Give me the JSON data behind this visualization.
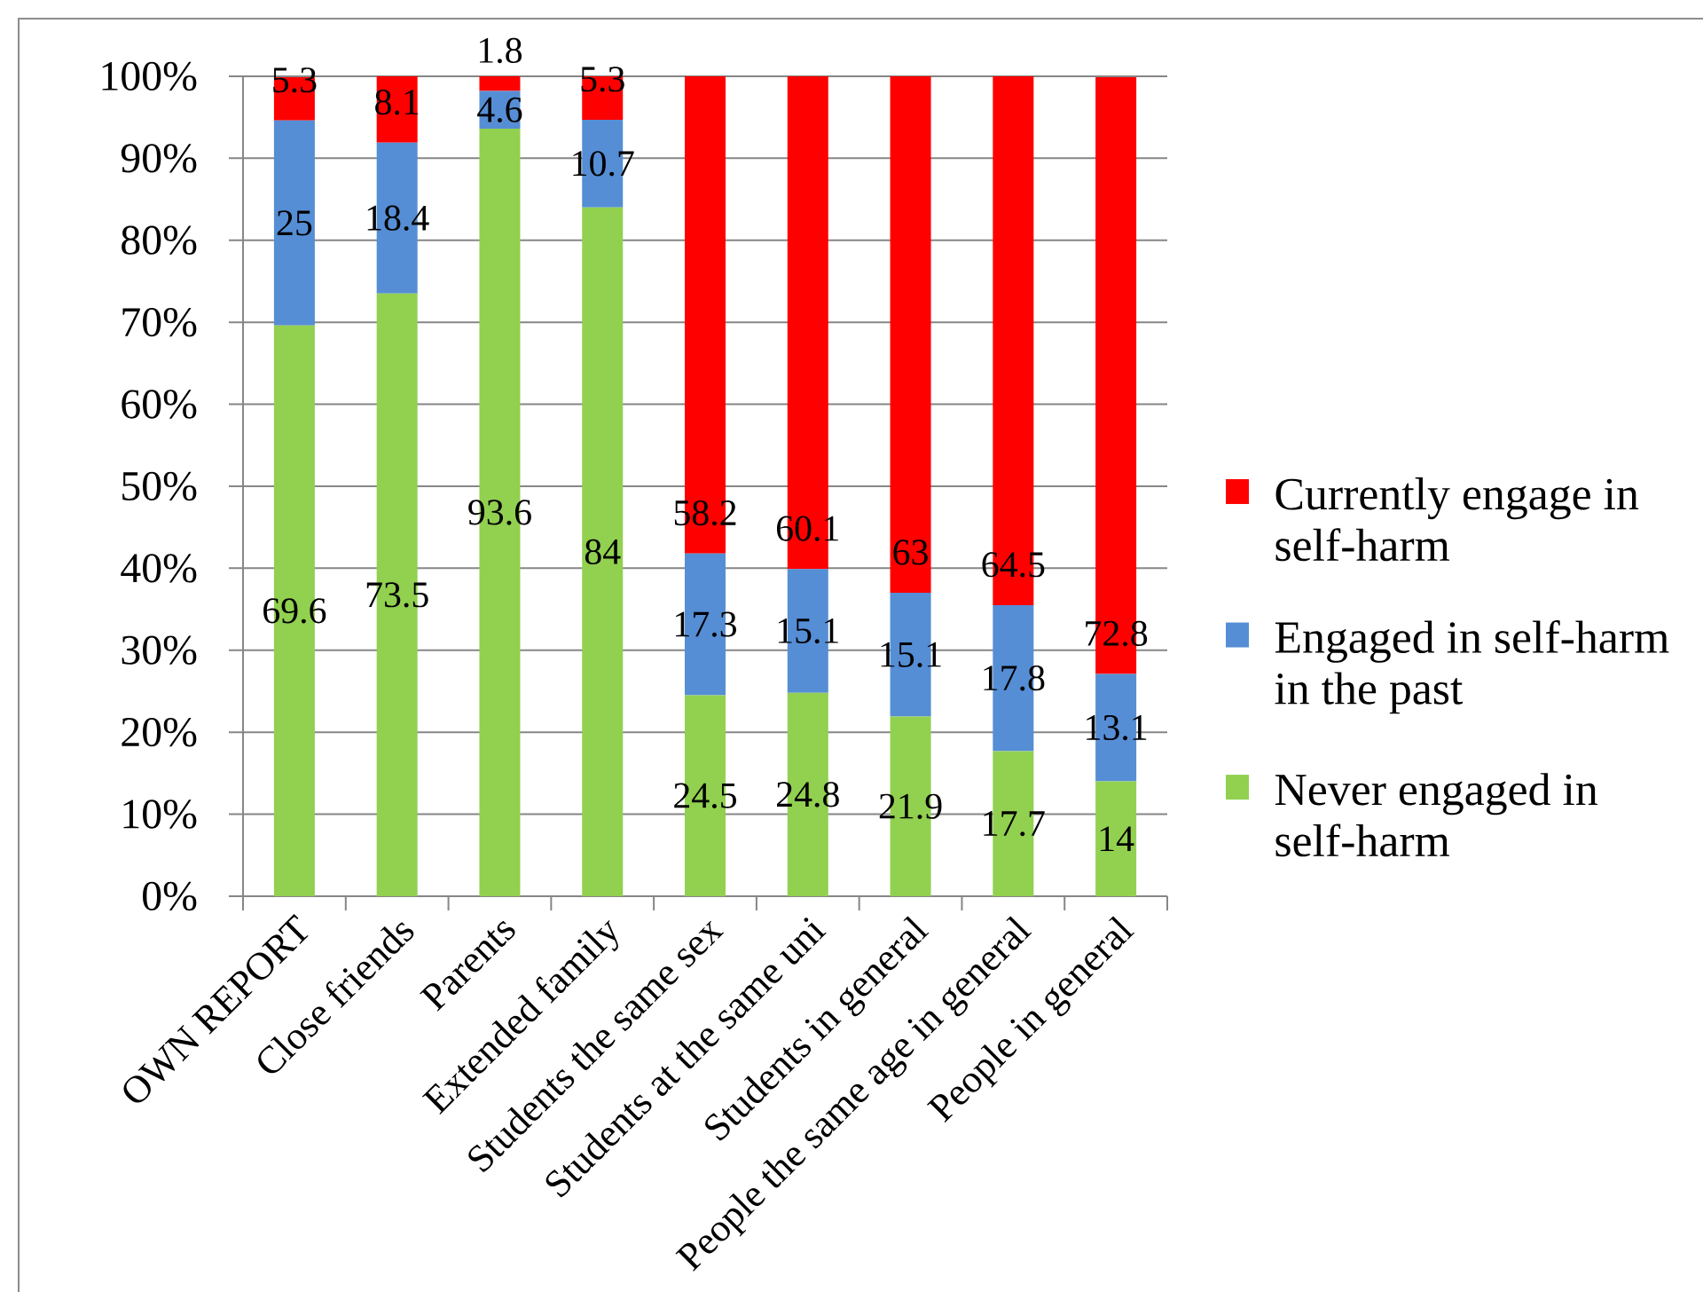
{
  "chart_data": {
    "type": "bar",
    "stacked": true,
    "categories": [
      "OWN REPORT",
      "Close friends",
      "Parents",
      "Extended family",
      "Students the same sex",
      "Students at the same uni",
      "Students in general",
      "People the same age in general",
      "People in general"
    ],
    "series": [
      {
        "name": "Never engaged in self-harm",
        "color": "#92d050",
        "values": [
          69.6,
          73.5,
          93.6,
          84,
          24.5,
          24.8,
          21.9,
          17.7,
          14
        ]
      },
      {
        "name": "Engaged in self-harm in the past",
        "color": "#558ed5",
        "values": [
          25,
          18.4,
          4.6,
          10.7,
          17.3,
          15.1,
          15.1,
          17.8,
          13.1
        ]
      },
      {
        "name": "Currently engage in self-harm",
        "color": "#ff0000",
        "values": [
          5.3,
          8.1,
          1.8,
          5.3,
          58.2,
          60.1,
          63,
          64.5,
          72.8
        ]
      }
    ],
    "ylim": [
      0,
      100
    ],
    "yticks": [
      {
        "value": 0,
        "label": "0%"
      },
      {
        "value": 10,
        "label": "10%"
      },
      {
        "value": 20,
        "label": "20%"
      },
      {
        "value": 30,
        "label": "30%"
      },
      {
        "value": 40,
        "label": "40%"
      },
      {
        "value": 50,
        "label": "50%"
      },
      {
        "value": 60,
        "label": "60%"
      },
      {
        "value": 70,
        "label": "70%"
      },
      {
        "value": 80,
        "label": "80%"
      },
      {
        "value": 90,
        "label": "90%"
      },
      {
        "value": 100,
        "label": "100%"
      }
    ],
    "grid": "y",
    "legend": "right",
    "data_labels": true
  }
}
